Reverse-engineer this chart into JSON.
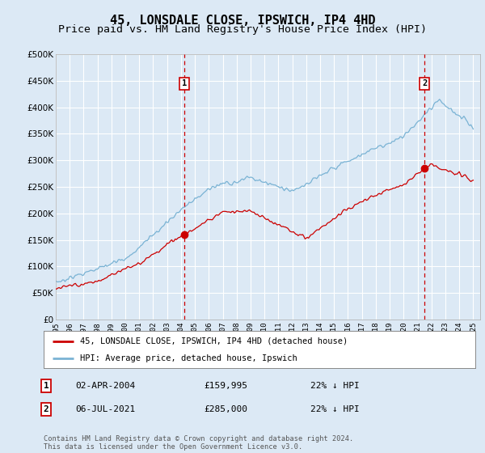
{
  "title": "45, LONSDALE CLOSE, IPSWICH, IP4 4HD",
  "subtitle": "Price paid vs. HM Land Registry's House Price Index (HPI)",
  "background_color": "#dce9f5",
  "plot_bg_color": "#dce9f5",
  "grid_color": "#ffffff",
  "ylim": [
    0,
    500000
  ],
  "yticks": [
    0,
    50000,
    100000,
    150000,
    200000,
    250000,
    300000,
    350000,
    400000,
    450000,
    500000
  ],
  "xstart_year": 1995,
  "xend_year": 2025,
  "marker1_year": 2004.25,
  "marker2_year": 2021.5,
  "hpi_color": "#7ab3d4",
  "price_color": "#cc0000",
  "legend_label1": "45, LONSDALE CLOSE, IPSWICH, IP4 4HD (detached house)",
  "legend_label2": "HPI: Average price, detached house, Ipswich",
  "table_row1_num": "1",
  "table_row1_date": "02-APR-2004",
  "table_row1_price": "£159,995",
  "table_row1_hpi": "22% ↓ HPI",
  "table_row2_num": "2",
  "table_row2_date": "06-JUL-2021",
  "table_row2_price": "£285,000",
  "table_row2_hpi": "22% ↓ HPI",
  "footer": "Contains HM Land Registry data © Crown copyright and database right 2024.\nThis data is licensed under the Open Government Licence v3.0.",
  "title_fontsize": 11,
  "subtitle_fontsize": 9.5
}
